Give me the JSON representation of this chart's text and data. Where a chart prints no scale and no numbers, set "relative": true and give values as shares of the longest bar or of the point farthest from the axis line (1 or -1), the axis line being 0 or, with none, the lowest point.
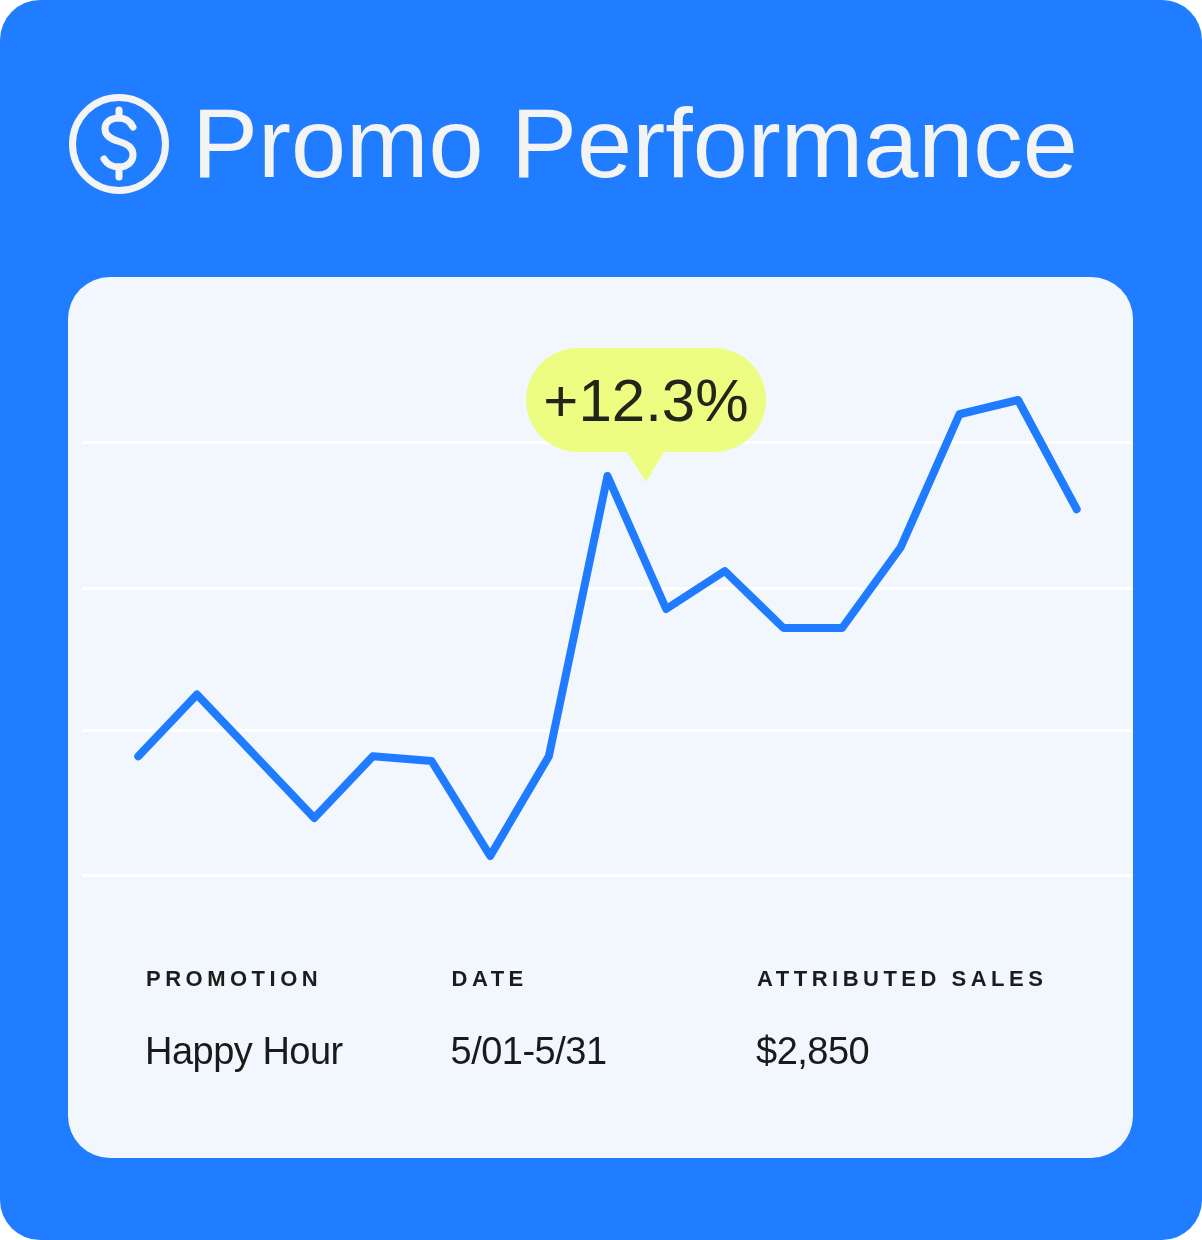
{
  "chart_data": {
    "type": "line",
    "title": "Promo Performance",
    "relative": true,
    "marker": "none",
    "color": "#1f7bff",
    "categories": [
      null,
      null,
      null,
      null,
      null,
      null,
      null,
      null,
      null,
      null,
      null,
      null,
      null,
      null,
      null,
      null,
      null
    ],
    "values": [
      0.25,
      0.38,
      0.25,
      0.12,
      0.25,
      0.24,
      0.04,
      0.25,
      0.84,
      0.56,
      0.64,
      0.52,
      0.52,
      0.69,
      0.97,
      1,
      0.77
    ],
    "annotations": [
      "+12.3%",
      "PROMOTION",
      "Happy Hour",
      "DATE",
      "5/01-5/31",
      "ATTRIBUTED SALES",
      "$2,850"
    ]
  }
}
